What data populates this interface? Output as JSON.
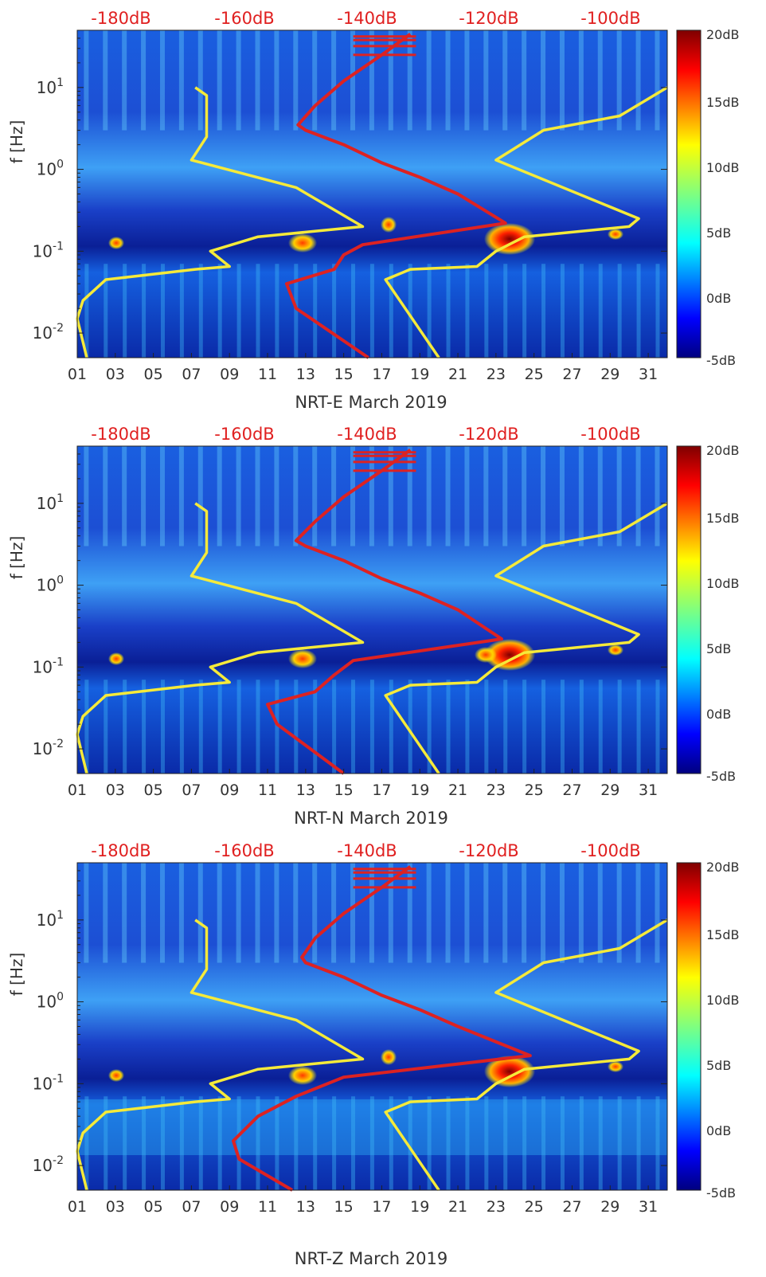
{
  "panels": [
    {
      "xlabel": "NRT-E March 2019",
      "ylabel": "f [Hz]",
      "top_labels": [
        "-180dB",
        "-160dB",
        "-140dB",
        "-120dB",
        "-100dB"
      ],
      "colorbar_ticks": [
        "20dB",
        "15dB",
        "10dB",
        "5dB",
        "0dB",
        "-5dB"
      ],
      "x_ticks": [
        "01",
        "03",
        "05",
        "07",
        "09",
        "11",
        "13",
        "15",
        "17",
        "19",
        "21",
        "23",
        "25",
        "27",
        "29",
        "31"
      ],
      "y_ticks": [
        {
          "base": "10",
          "exp": "1"
        },
        {
          "base": "10",
          "exp": "0"
        },
        {
          "base": "10",
          "exp": "-1"
        },
        {
          "base": "10",
          "exp": "-2"
        }
      ]
    },
    {
      "xlabel": "NRT-N March 2019",
      "ylabel": "f [Hz]",
      "top_labels": [
        "-180dB",
        "-160dB",
        "-140dB",
        "-120dB",
        "-100dB"
      ],
      "colorbar_ticks": [
        "20dB",
        "15dB",
        "10dB",
        "5dB",
        "0dB",
        "-5dB"
      ],
      "x_ticks": [
        "01",
        "03",
        "05",
        "07",
        "09",
        "11",
        "13",
        "15",
        "17",
        "19",
        "21",
        "23",
        "25",
        "27",
        "29",
        "31"
      ],
      "y_ticks": [
        {
          "base": "10",
          "exp": "1"
        },
        {
          "base": "10",
          "exp": "0"
        },
        {
          "base": "10",
          "exp": "-1"
        },
        {
          "base": "10",
          "exp": "-2"
        }
      ]
    },
    {
      "xlabel": "NRT-Z March 2019",
      "ylabel": "f [Hz]",
      "top_labels": [
        "-180dB",
        "-160dB",
        "-140dB",
        "-120dB",
        "-100dB"
      ],
      "colorbar_ticks": [
        "20dB",
        "15dB",
        "10dB",
        "5dB",
        "0dB",
        "-5dB"
      ],
      "x_ticks": [
        "01",
        "03",
        "05",
        "07",
        "09",
        "11",
        "13",
        "15",
        "17",
        "19",
        "21",
        "23",
        "25",
        "27",
        "29",
        "31"
      ],
      "y_ticks": [
        {
          "base": "10",
          "exp": "1"
        },
        {
          "base": "10",
          "exp": "0"
        },
        {
          "base": "10",
          "exp": "-1"
        },
        {
          "base": "10",
          "exp": "-2"
        }
      ]
    }
  ],
  "colors": {
    "top_axis": "#e02020",
    "red_curve": "#dd2222",
    "yellow_curve": "#f5ea3a",
    "background_dark": "#00147a",
    "background_mid": "#1f6fe8"
  },
  "chart_data": [
    {
      "type": "heatmap",
      "title": "",
      "xlabel": "NRT-E March 2019",
      "ylabel": "f [Hz]",
      "x_range_days": [
        1,
        32
      ],
      "y_range_hz": [
        0.005,
        50
      ],
      "y_scale": "log",
      "colorbar": {
        "min_db": -5,
        "max_db": 20,
        "ticks": [
          20,
          15,
          10,
          5,
          0,
          -5
        ]
      },
      "top_axis": {
        "label_unit": "dB",
        "ticks": [
          -180,
          -160,
          -140,
          -120,
          -100
        ],
        "x_days": [
          3.0,
          9.0,
          15.0,
          21.0,
          27.0
        ]
      },
      "series": [
        {
          "name": "yellow-low-noise-model",
          "color": "yellow",
          "x": [
            1.5,
            1.0,
            1.3,
            2.5,
            7.2,
            9.0,
            8.0,
            10.5,
            16.0,
            12.5,
            7.0,
            7.8,
            7.8,
            7.2
          ],
          "y": [
            0.005,
            0.015,
            0.025,
            0.045,
            0.06,
            0.065,
            0.1,
            0.15,
            0.2,
            0.6,
            1.3,
            2.5,
            8,
            10
          ]
        },
        {
          "name": "yellow-high-noise-model",
          "color": "yellow",
          "x": [
            20.0,
            17.2,
            18.5,
            22.0,
            23.0,
            24.5,
            30.0,
            30.5,
            23.0,
            25.5,
            29.5,
            32.0
          ],
          "y": [
            0.005,
            0.045,
            0.06,
            0.065,
            0.1,
            0.15,
            0.2,
            0.25,
            1.3,
            3,
            4.5,
            10
          ]
        },
        {
          "name": "red-noise-curve",
          "color": "red",
          "x": [
            16.3,
            12.5,
            12.0,
            14.5,
            15.0,
            16.0,
            23.5,
            21.0,
            19.0,
            17.0,
            15.0,
            13.0,
            12.6,
            13.5,
            15.0,
            17.0,
            18.5
          ],
          "y": [
            0.005,
            0.02,
            0.04,
            0.06,
            0.09,
            0.12,
            0.22,
            0.5,
            0.8,
            1.2,
            2.0,
            3.0,
            3.5,
            6,
            12,
            25,
            45
          ]
        }
      ]
    },
    {
      "type": "heatmap",
      "title": "",
      "xlabel": "NRT-N March 2019",
      "ylabel": "f [Hz]",
      "x_range_days": [
        1,
        32
      ],
      "y_range_hz": [
        0.005,
        50
      ],
      "y_scale": "log",
      "colorbar": {
        "min_db": -5,
        "max_db": 20,
        "ticks": [
          20,
          15,
          10,
          5,
          0,
          -5
        ]
      },
      "top_axis": {
        "label_unit": "dB",
        "ticks": [
          -180,
          -160,
          -140,
          -120,
          -100
        ],
        "x_days": [
          3.0,
          9.0,
          15.0,
          21.0,
          27.0
        ]
      },
      "series": [
        {
          "name": "yellow-low-noise-model",
          "color": "yellow",
          "x": [
            1.5,
            1.0,
            1.3,
            2.5,
            7.2,
            9.0,
            8.0,
            10.5,
            16.0,
            12.5,
            7.0,
            7.8,
            7.8,
            7.2
          ],
          "y": [
            0.005,
            0.015,
            0.025,
            0.045,
            0.06,
            0.065,
            0.1,
            0.15,
            0.2,
            0.6,
            1.3,
            2.5,
            8,
            10
          ]
        },
        {
          "name": "yellow-high-noise-model",
          "color": "yellow",
          "x": [
            20.0,
            17.2,
            18.5,
            22.0,
            23.0,
            24.5,
            30.0,
            30.5,
            23.0,
            25.5,
            29.5,
            32.0
          ],
          "y": [
            0.005,
            0.045,
            0.06,
            0.065,
            0.1,
            0.15,
            0.2,
            0.25,
            1.3,
            3,
            4.5,
            10
          ]
        },
        {
          "name": "red-noise-curve",
          "color": "red",
          "x": [
            15.0,
            11.5,
            11.0,
            13.5,
            14.5,
            15.5,
            23.3,
            21.0,
            19.0,
            17.0,
            15.0,
            13.0,
            12.5,
            13.5,
            15.0,
            17.0,
            18.5
          ],
          "y": [
            0.005,
            0.02,
            0.035,
            0.05,
            0.08,
            0.12,
            0.22,
            0.5,
            0.8,
            1.2,
            2.0,
            3.0,
            3.5,
            6,
            12,
            25,
            45
          ]
        }
      ]
    },
    {
      "type": "heatmap",
      "title": "",
      "xlabel": "NRT-Z March 2019",
      "ylabel": "f [Hz]",
      "x_range_days": [
        1,
        32
      ],
      "y_range_hz": [
        0.005,
        50
      ],
      "y_scale": "log",
      "colorbar": {
        "min_db": -5,
        "max_db": 20,
        "ticks": [
          20,
          15,
          10,
          5,
          0,
          -5
        ]
      },
      "top_axis": {
        "label_unit": "dB",
        "ticks": [
          -180,
          -160,
          -140,
          -120,
          -100
        ],
        "x_days": [
          3.0,
          9.0,
          15.0,
          21.0,
          27.0
        ]
      },
      "series": [
        {
          "name": "yellow-low-noise-model",
          "color": "yellow",
          "x": [
            1.5,
            1.0,
            1.3,
            2.5,
            7.2,
            9.0,
            8.0,
            10.5,
            16.0,
            12.5,
            7.0,
            7.8,
            7.8,
            7.2
          ],
          "y": [
            0.005,
            0.015,
            0.025,
            0.045,
            0.06,
            0.065,
            0.1,
            0.15,
            0.2,
            0.6,
            1.3,
            2.5,
            8,
            10
          ]
        },
        {
          "name": "yellow-high-noise-model",
          "color": "yellow",
          "x": [
            20.0,
            17.2,
            18.5,
            22.0,
            23.0,
            24.5,
            30.0,
            30.5,
            23.0,
            25.5,
            29.5,
            32.0
          ],
          "y": [
            0.005,
            0.045,
            0.06,
            0.065,
            0.1,
            0.15,
            0.2,
            0.25,
            1.3,
            3,
            4.5,
            10
          ]
        },
        {
          "name": "red-noise-curve",
          "color": "red",
          "x": [
            12.3,
            9.5,
            9.2,
            10.5,
            12.5,
            15.0,
            24.8,
            21.0,
            19.0,
            17.0,
            15.0,
            13.0,
            12.8,
            13.5,
            15.0,
            17.0,
            18.5
          ],
          "y": [
            0.005,
            0.012,
            0.02,
            0.04,
            0.07,
            0.12,
            0.22,
            0.5,
            0.8,
            1.2,
            2.0,
            3.0,
            3.5,
            6,
            12,
            25,
            45
          ]
        }
      ]
    }
  ]
}
